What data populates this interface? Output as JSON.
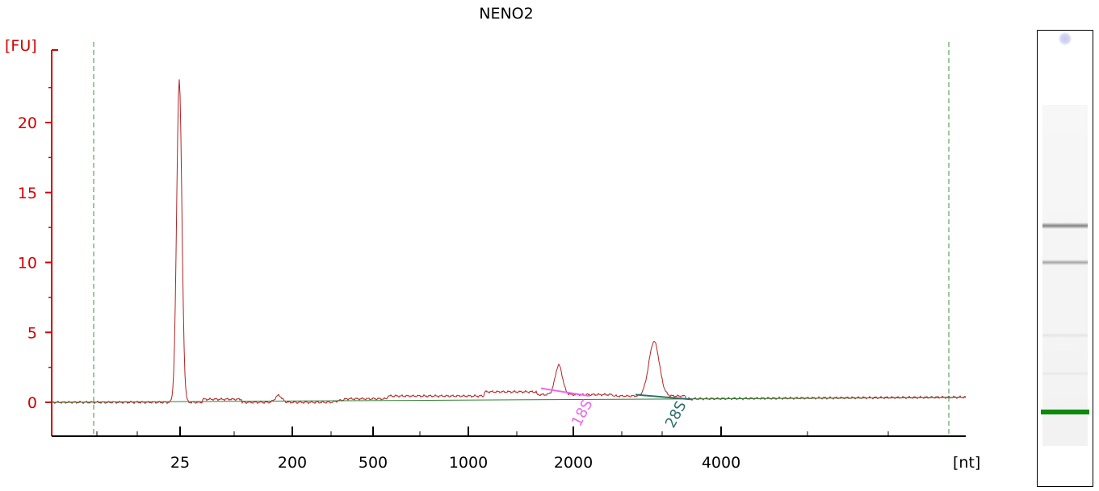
{
  "chart_data": {
    "type": "line",
    "title": "NENO2",
    "ylabel": "[FU]",
    "xlabel": "[nt]",
    "ylim": [
      -2.5,
      25
    ],
    "y_ticks": [
      0,
      5,
      10,
      15,
      20
    ],
    "x_ticks": [
      "25",
      "200",
      "500",
      "1000",
      "2000",
      "4000"
    ],
    "peak_labels": [
      "18S",
      "28S"
    ],
    "colors": {
      "trace": "#b22222",
      "baseline": "#2e7d32",
      "axis": "#d40000",
      "peak_18s": "#ee66ee",
      "peak_28s": "#2f6f6f",
      "gel_marker": "#0d8a0d"
    },
    "series": [
      {
        "x": [
          "25",
          "200",
          "500",
          "1000",
          "2000",
          "4000"
        ],
        "values": [
          23.1,
          0.8,
          0.9,
          0.8,
          2.9,
          4.5
        ]
      }
    ]
  }
}
